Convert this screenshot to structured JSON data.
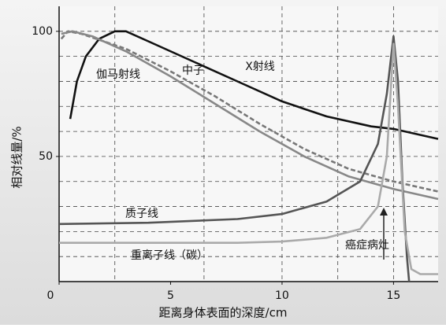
{
  "chart_data": {
    "type": "line",
    "xlabel": "距离身体表面的深度/cm",
    "ylabel": "相对线量/%",
    "xlim": [
      0,
      17
    ],
    "ylim": [
      0,
      110
    ],
    "xticks": [
      0,
      5,
      10,
      15
    ],
    "yticks": [
      50,
      100
    ],
    "xgrid": [
      2.5,
      6.5,
      10,
      12.5,
      15
    ],
    "ygrid": [
      10,
      20,
      30,
      40,
      50,
      60,
      70,
      80,
      90,
      100
    ],
    "series": [
      {
        "name": "X射线",
        "color": "#111111",
        "dash": false,
        "x": [
          0.5,
          0.8,
          1.2,
          1.8,
          2.5,
          3,
          4,
          6,
          8,
          10,
          12,
          14,
          15,
          17
        ],
        "values": [
          65,
          80,
          90,
          97,
          100,
          100,
          96,
          88,
          80,
          72,
          66,
          62,
          61,
          57
        ]
      },
      {
        "name": "伽马射线",
        "color": "#777777",
        "dash": true,
        "x": [
          0.1,
          0.4,
          1,
          3,
          5,
          7,
          9,
          11,
          13,
          15,
          17
        ],
        "values": [
          97,
          100,
          99,
          93,
          84,
          74,
          63,
          53,
          45,
          40,
          36
        ]
      },
      {
        "name": "中子",
        "color": "#888888",
        "dash": false,
        "x": [
          0.1,
          0.6,
          1.5,
          3,
          5,
          7,
          9,
          11,
          13,
          15,
          17
        ],
        "values": [
          99,
          100,
          98,
          92,
          82,
          71,
          60,
          50,
          42,
          37,
          33
        ]
      },
      {
        "name": "质子线",
        "color": "#555555",
        "dash": false,
        "x": [
          0,
          4,
          8,
          10,
          12,
          13.5,
          14.3,
          14.7,
          15,
          15.2,
          15.4,
          15.6,
          15.7
        ],
        "values": [
          23,
          23.5,
          25,
          27,
          32,
          40,
          55,
          75,
          98,
          80,
          40,
          10,
          0
        ]
      },
      {
        "name": "重离子线（碳）",
        "color": "#aaaaaa",
        "dash": false,
        "x": [
          0,
          8,
          10,
          12,
          13.5,
          14.3,
          14.7,
          15,
          15.2,
          15.5,
          15.8,
          16.2,
          17
        ],
        "values": [
          15.5,
          15.5,
          16,
          17.5,
          21,
          30,
          50,
          95,
          70,
          20,
          5,
          3,
          3
        ]
      }
    ],
    "annotations": [
      "癌症病灶"
    ]
  }
}
